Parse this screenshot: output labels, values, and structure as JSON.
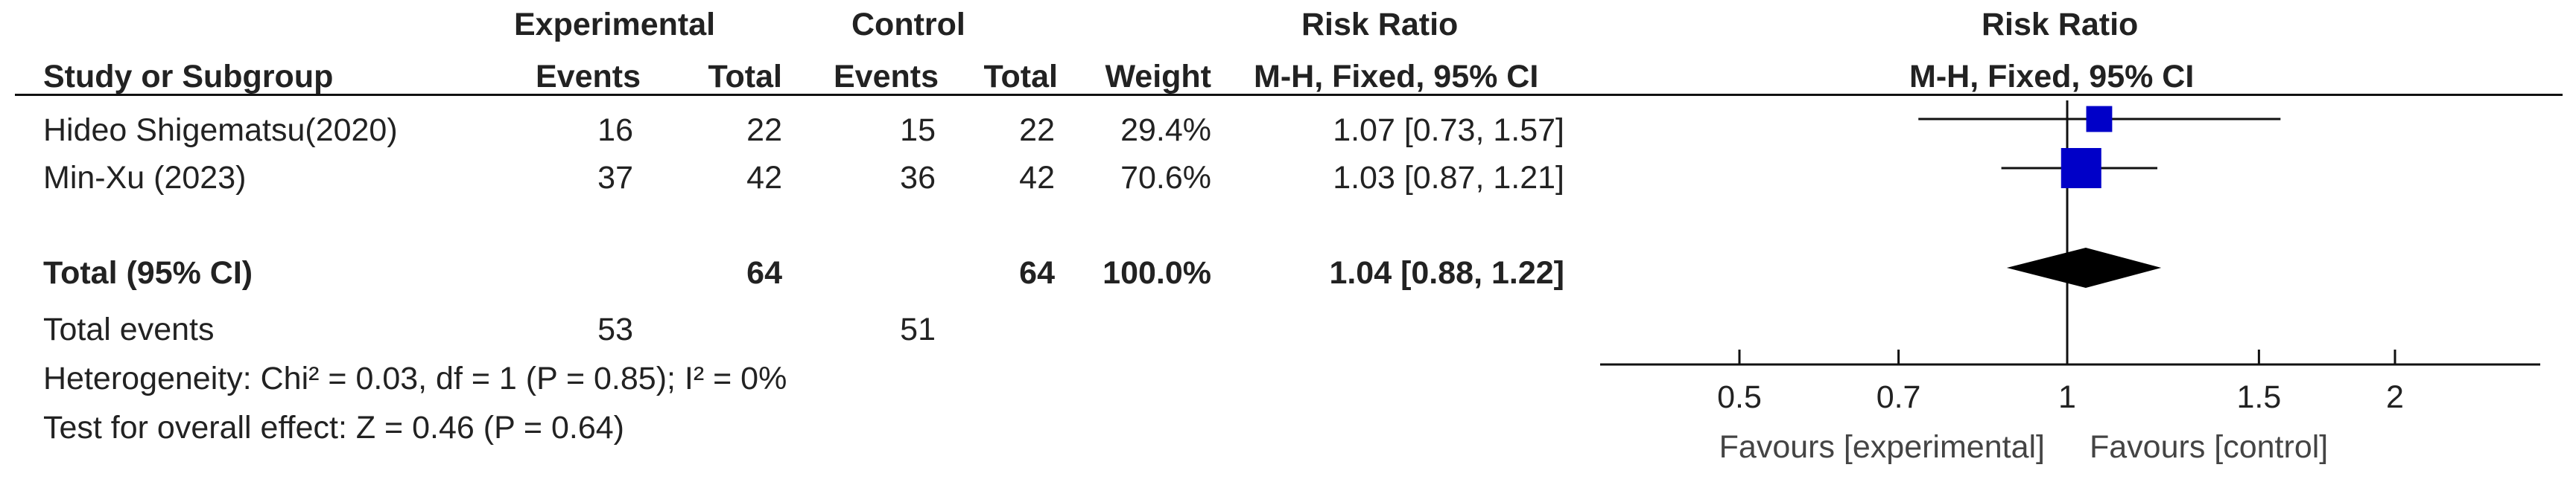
{
  "headers": {
    "experimental": "Experimental",
    "control": "Control",
    "risk_ratio": "Risk Ratio",
    "study": "Study or Subgroup",
    "events": "Events",
    "total": "Total",
    "weight": "Weight",
    "method": "M-H, Fixed, 95% CI",
    "plot_title": "Risk Ratio",
    "plot_method": "M-H, Fixed, 95% CI"
  },
  "studies": [
    {
      "name": "Hideo Shigematsu(2020)",
      "exp_events": "16",
      "exp_total": "22",
      "ctl_events": "15",
      "ctl_total": "22",
      "weight": "29.4%",
      "ci_text": "1.07 [0.73, 1.57]"
    },
    {
      "name": "Min-Xu (2023)",
      "exp_events": "37",
      "exp_total": "42",
      "ctl_events": "36",
      "ctl_total": "42",
      "weight": "70.6%",
      "ci_text": "1.03 [0.87, 1.21]"
    }
  ],
  "total_row": {
    "label": "Total (95% CI)",
    "exp_total": "64",
    "ctl_total": "64",
    "weight": "100.0%",
    "ci_text": "1.04 [0.88, 1.22]"
  },
  "total_events": {
    "label": "Total events",
    "exp": "53",
    "ctl": "51"
  },
  "heterogeneity": "Heterogeneity: Chi² = 0.03, df = 1 (P = 0.85); I² = 0%",
  "overall_effect": "Test for overall effect: Z = 0.46 (P = 0.64)",
  "axis": {
    "favours_left": "Favours [experimental]",
    "favours_right": "Favours [control]"
  },
  "colors": {
    "study_marker": "#0000c8",
    "summary": "#000000",
    "text": "#222222"
  },
  "chart_data": {
    "type": "forest",
    "scale": "log",
    "xlim": [
      0.5,
      2
    ],
    "ticks": [
      0.5,
      0.7,
      1,
      1.5,
      2
    ],
    "tick_labels": [
      "0.5",
      "0.7",
      "1",
      "1.5",
      "2"
    ],
    "reference": 1,
    "studies": [
      {
        "rr": 1.07,
        "lo": 0.73,
        "hi": 1.57,
        "weight": 29.4
      },
      {
        "rr": 1.03,
        "lo": 0.87,
        "hi": 1.21,
        "weight": 70.6
      }
    ],
    "summary": {
      "rr": 1.04,
      "lo": 0.88,
      "hi": 1.22
    }
  }
}
